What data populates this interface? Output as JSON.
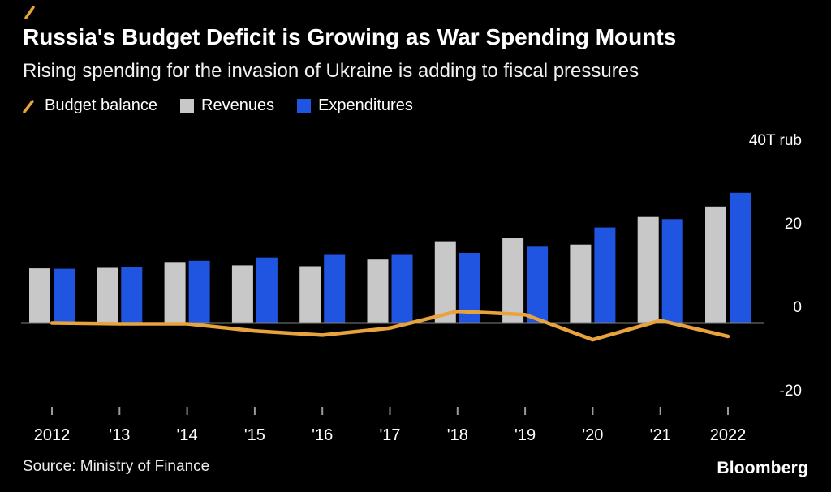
{
  "header": {
    "title": "Russia's Budget Deficit is Growing as War Spending Mounts",
    "subtitle": "Rising spending for the invasion of Ukraine is adding to fiscal pressures"
  },
  "legend": [
    {
      "label": "Budget balance",
      "swatch": "line",
      "color": "#e8a33d"
    },
    {
      "label": "Revenues",
      "swatch": "square",
      "color": "#c8c8c8"
    },
    {
      "label": "Expenditures",
      "swatch": "square",
      "color": "#1f55e0"
    }
  ],
  "chart_data": {
    "type": "combo",
    "title": "Russia's Budget Deficit is Growing as War Spending Mounts",
    "subtitle": "Rising spending for the invasion of Ukraine is adding to fiscal pressures",
    "unit": "T rub",
    "categories": [
      "2012",
      "'13",
      "'14",
      "'15",
      "'16",
      "'17",
      "'18",
      "'19",
      "'20",
      "'21",
      "2022"
    ],
    "series": [
      {
        "name": "Revenues",
        "type": "bar",
        "color": "#c8c8c8",
        "values": [
          13.0,
          13.1,
          14.5,
          13.7,
          13.5,
          15.1,
          19.5,
          20.2,
          18.7,
          25.3,
          27.8
        ]
      },
      {
        "name": "Expenditures",
        "type": "bar",
        "color": "#1f55e0",
        "values": [
          12.9,
          13.3,
          14.8,
          15.6,
          16.4,
          16.4,
          16.7,
          18.2,
          22.8,
          24.8,
          31.1
        ]
      },
      {
        "name": "Budget balance",
        "type": "line",
        "color": "#e8a33d",
        "values": [
          -0.1,
          -0.3,
          -0.3,
          -2.0,
          -3.0,
          -1.3,
          2.7,
          1.9,
          -4.1,
          0.5,
          -3.3
        ]
      }
    ],
    "yticks": [
      {
        "value": 40,
        "label": "40T rub"
      },
      {
        "value": 20,
        "label": "20"
      },
      {
        "value": 0,
        "label": "0"
      },
      {
        "value": -20,
        "label": "-20"
      }
    ],
    "ylim": [
      -25,
      42
    ],
    "grid": false,
    "zero_line": true,
    "legend_position": "top"
  },
  "footer": {
    "source": "Source:  Ministry of Finance",
    "brand": "Bloomberg"
  },
  "colors": {
    "background": "#000000",
    "text": "#ffffff",
    "zero_line": "#7f7f7f",
    "tick": "#9a9a9a",
    "accent": "#e8a33d"
  }
}
